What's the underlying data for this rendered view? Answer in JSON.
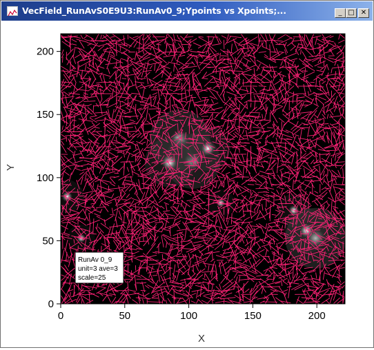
{
  "window": {
    "title": "VecField_RunAvS0E9U3:RunAv0_9;Ypoints vs Xpoints;...",
    "minimize_glyph": "_",
    "maximize_glyph": "□",
    "close_glyph": "✕",
    "icon": "graph-icon"
  },
  "chart_data": {
    "type": "scatter",
    "subtype": "vector-field-over-image",
    "xlabel": "X",
    "ylabel": "Y",
    "xlim": [
      0,
      222
    ],
    "ylim": [
      0,
      214
    ],
    "xticks": [
      0,
      50,
      100,
      150,
      200
    ],
    "yticks": [
      0,
      50,
      100,
      150,
      200
    ],
    "grid": false,
    "series": [
      {
        "color": "#ff2277"
      }
    ],
    "background": "#000000",
    "bright_sources": [
      {
        "x": 93,
        "y": 130,
        "level": 0.9
      },
      {
        "x": 103,
        "y": 113,
        "level": 0.8
      },
      {
        "x": 85,
        "y": 112,
        "level": 0.7
      },
      {
        "x": 115,
        "y": 123,
        "level": 0.6
      },
      {
        "x": 199,
        "y": 52,
        "level": 0.9
      },
      {
        "x": 192,
        "y": 58,
        "level": 0.6
      },
      {
        "x": 182,
        "y": 74,
        "level": 0.4
      },
      {
        "x": 5,
        "y": 85,
        "level": 0.4
      },
      {
        "x": 16,
        "y": 52,
        "level": 0.3
      },
      {
        "x": 125,
        "y": 80,
        "level": 0.3
      }
    ],
    "legend_box": {
      "lines": [
        "RunAv 0_9",
        "unit=3 ave=3",
        "scale=25"
      ],
      "placement": "bottom-left"
    }
  }
}
